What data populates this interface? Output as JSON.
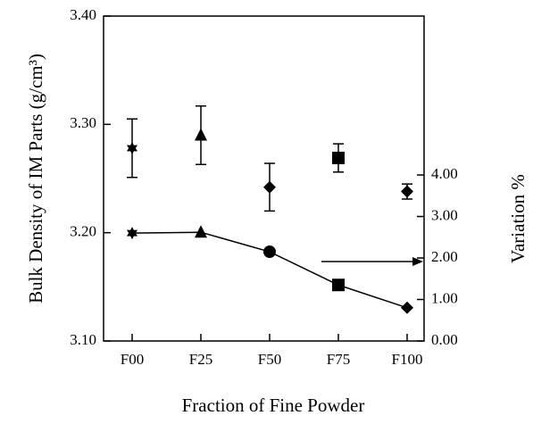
{
  "chart_data": {
    "type": "line",
    "xlabel": "Fraction of Fine Powder",
    "ylabel": "Bulk Density of IM Parts (g/cm³)",
    "y2label": "Variation %",
    "categories": [
      "F00",
      "F25",
      "F50",
      "F75",
      "F100"
    ],
    "ylim": [
      3.1,
      3.4
    ],
    "yticks": [
      {
        "value": 3.1,
        "label": "3.10"
      },
      {
        "value": 3.2,
        "label": "3.20"
      },
      {
        "value": 3.3,
        "label": "3.30"
      },
      {
        "value": 3.4,
        "label": "3.40"
      }
    ],
    "y2lim": [
      0,
      7.83
    ],
    "y2ticks": [
      {
        "value": 0,
        "label": "0.00"
      },
      {
        "value": 1,
        "label": "1.00"
      },
      {
        "value": 2,
        "label": "2.00"
      },
      {
        "value": 3,
        "label": "3.00"
      },
      {
        "value": 4,
        "label": "4.00"
      }
    ],
    "series": [
      {
        "name": "Bulk Density",
        "color": "#000000",
        "values": [
          3.278,
          3.29,
          3.242,
          3.269,
          3.238
        ],
        "errors": [
          0.027,
          0.027,
          0.022,
          0.013,
          0.007
        ],
        "markers": [
          "star",
          "triangle",
          "diamond",
          "square",
          "diamond"
        ]
      },
      {
        "name": "Variation",
        "color": "#000000",
        "axis": "y2",
        "values": [
          2.6,
          2.62,
          2.15,
          1.35,
          0.8
        ],
        "markers": [
          "star",
          "triangle",
          "circle",
          "square",
          "diamond"
        ]
      }
    ]
  }
}
